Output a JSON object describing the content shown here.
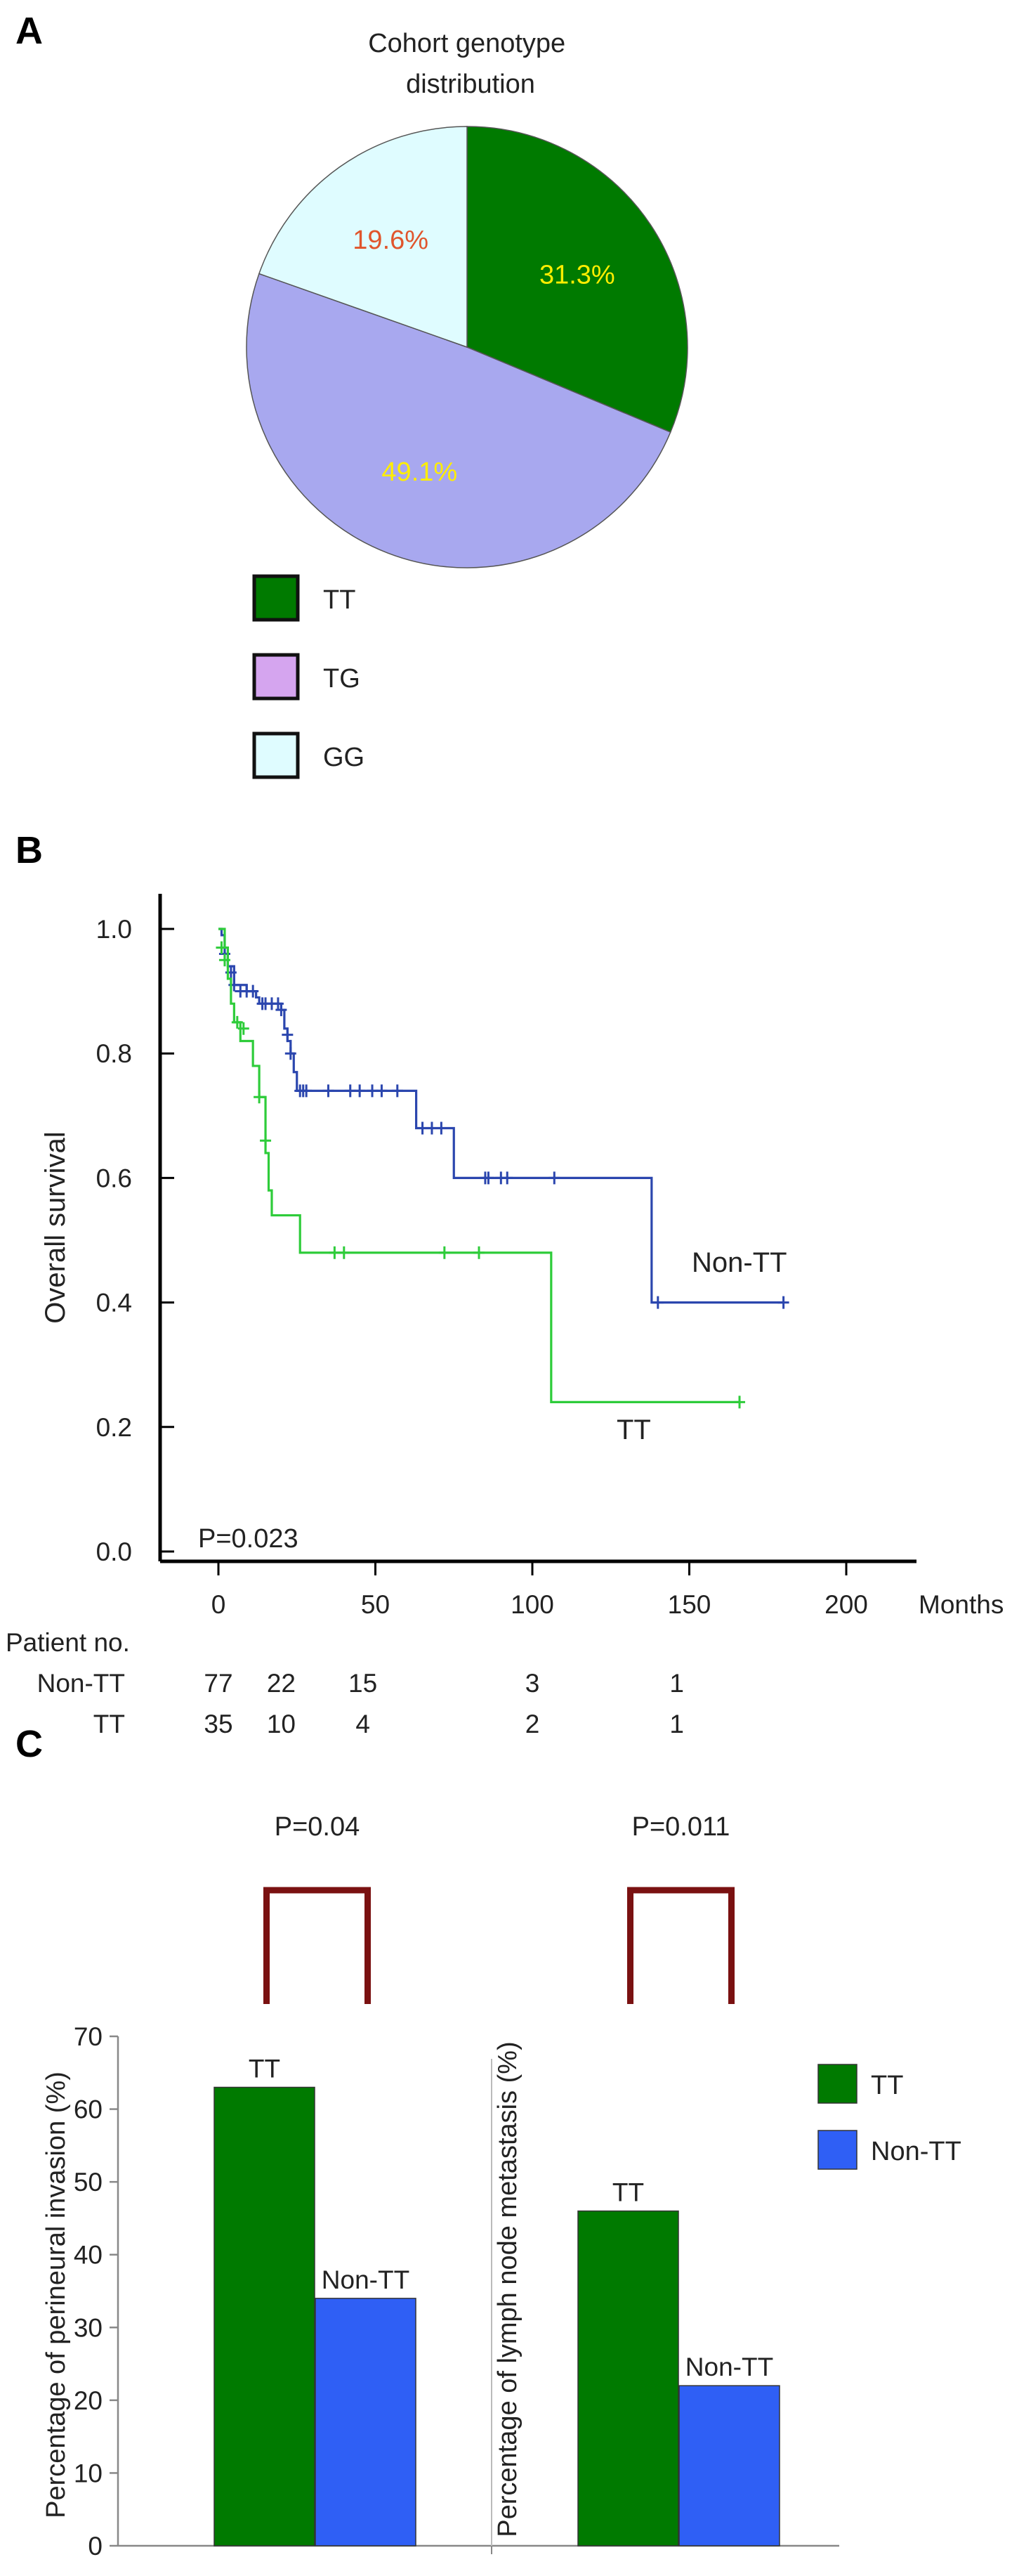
{
  "panels": {
    "a": "A",
    "b": "B",
    "c": "C"
  },
  "colors": {
    "tt_green": "#007a00",
    "tg_lavender": "#a8a8ef",
    "gg_cyan": "#dffcff",
    "legend_tg": "#d5a5ef",
    "nontt_blue": "#2b46ae",
    "tt_line_green": "#2ecc3a",
    "bar_blue": "#2f5ff5",
    "bracket": "#7a1111"
  },
  "chart_data": [
    {
      "type": "pie",
      "title": "Cohort genotype\ndistribution",
      "slices": [
        {
          "label": "TT",
          "value": 31.3,
          "value_label": "31.3%",
          "label_color": "#ffee00"
        },
        {
          "label": "TG",
          "value": 49.1,
          "value_label": "49.1%",
          "label_color": "#ffee00"
        },
        {
          "label": "GG",
          "value": 19.6,
          "value_label": "19.6%",
          "label_color": "#e0552c"
        }
      ],
      "legend": [
        "TT",
        "TG",
        "GG"
      ],
      "legend_placement": "bottom-left"
    },
    {
      "type": "line",
      "subtype": "kaplan-meier",
      "ylabel": "Overall survival",
      "xlabel": "Months",
      "xlim": [
        0,
        200
      ],
      "ylim": [
        0,
        1
      ],
      "xticks": [
        0,
        50,
        100,
        150,
        200
      ],
      "yticks": [
        "0.0",
        "0.2",
        "0.4",
        "0.6",
        "0.8",
        "1.0"
      ],
      "pvalue": "P=0.023",
      "series": [
        {
          "name": "Non-TT",
          "steps": [
            [
              0,
              1.0
            ],
            [
              1,
              0.99
            ],
            [
              2,
              0.96
            ],
            [
              3,
              0.94
            ],
            [
              5,
              0.91
            ],
            [
              9,
              0.9
            ],
            [
              12,
              0.89
            ],
            [
              13,
              0.88
            ],
            [
              20,
              0.87
            ],
            [
              21,
              0.84
            ],
            [
              22,
              0.82
            ],
            [
              23,
              0.8
            ],
            [
              24,
              0.77
            ],
            [
              25,
              0.74
            ],
            [
              63,
              0.68
            ],
            [
              75,
              0.6
            ],
            [
              138,
              0.4
            ],
            [
              180,
              0.4
            ]
          ],
          "censors": [
            [
              2,
              0.96
            ],
            [
              4,
              0.93
            ],
            [
              5,
              0.91
            ],
            [
              7,
              0.9
            ],
            [
              9,
              0.9
            ],
            [
              11,
              0.9
            ],
            [
              14,
              0.88
            ],
            [
              15,
              0.88
            ],
            [
              17,
              0.88
            ],
            [
              19,
              0.88
            ],
            [
              20,
              0.87
            ],
            [
              22,
              0.83
            ],
            [
              23,
              0.8
            ],
            [
              26,
              0.74
            ],
            [
              27,
              0.74
            ],
            [
              28,
              0.74
            ],
            [
              35,
              0.74
            ],
            [
              42,
              0.74
            ],
            [
              45,
              0.74
            ],
            [
              49,
              0.74
            ],
            [
              52,
              0.74
            ],
            [
              57,
              0.74
            ],
            [
              65,
              0.68
            ],
            [
              68,
              0.68
            ],
            [
              71,
              0.68
            ],
            [
              85,
              0.6
            ],
            [
              86,
              0.6
            ],
            [
              90,
              0.6
            ],
            [
              92,
              0.6
            ],
            [
              107,
              0.6
            ],
            [
              140,
              0.4
            ],
            [
              180,
              0.4
            ]
          ]
        },
        {
          "name": "TT",
          "steps": [
            [
              0,
              1.0
            ],
            [
              2,
              0.97
            ],
            [
              3,
              0.92
            ],
            [
              4,
              0.88
            ],
            [
              5,
              0.85
            ],
            [
              7,
              0.82
            ],
            [
              11,
              0.78
            ],
            [
              13,
              0.73
            ],
            [
              15,
              0.64
            ],
            [
              16,
              0.58
            ],
            [
              17,
              0.54
            ],
            [
              26,
              0.48
            ],
            [
              106,
              0.24
            ],
            [
              166,
              0.24
            ]
          ],
          "censors": [
            [
              1,
              0.97
            ],
            [
              2,
              0.95
            ],
            [
              6,
              0.85
            ],
            [
              8,
              0.84
            ],
            [
              13,
              0.73
            ],
            [
              15,
              0.66
            ],
            [
              37,
              0.48
            ],
            [
              40,
              0.48
            ],
            [
              72,
              0.48
            ],
            [
              83,
              0.48
            ],
            [
              166,
              0.24
            ]
          ]
        }
      ],
      "risk_table": {
        "header": "Patient no.",
        "rows": [
          {
            "name": "Non-TT",
            "counts": [
              {
                "x": 0,
                "n": "77"
              },
              {
                "x": 20,
                "n": "22"
              },
              {
                "x": 46,
                "n": "15"
              },
              {
                "x": 100,
                "n": "3"
              },
              {
                "x": 146,
                "n": "1"
              }
            ]
          },
          {
            "name": "TT",
            "counts": [
              {
                "x": 0,
                "n": "35"
              },
              {
                "x": 20,
                "n": "10"
              },
              {
                "x": 46,
                "n": "4"
              },
              {
                "x": 100,
                "n": "2"
              },
              {
                "x": 146,
                "n": "1"
              }
            ]
          }
        ]
      }
    },
    {
      "type": "bar",
      "ylim": [
        0,
        70
      ],
      "yticks": [
        0,
        10,
        20,
        30,
        40,
        50,
        60,
        70
      ],
      "groups": [
        {
          "ylabel": "Percentage of perineural invasion (%)",
          "pvalue": "P=0.04",
          "bars": [
            {
              "name": "TT",
              "value": 63
            },
            {
              "name": "Non-TT",
              "value": 34
            }
          ]
        },
        {
          "ylabel": "Percentage of lymph node metastasis (%)",
          "pvalue": "P=0.011",
          "bars": [
            {
              "name": "TT",
              "value": 46
            },
            {
              "name": "Non-TT",
              "value": 22
            }
          ]
        }
      ],
      "legend": [
        "TT",
        "Non-TT"
      ],
      "legend_placement": "right"
    }
  ]
}
